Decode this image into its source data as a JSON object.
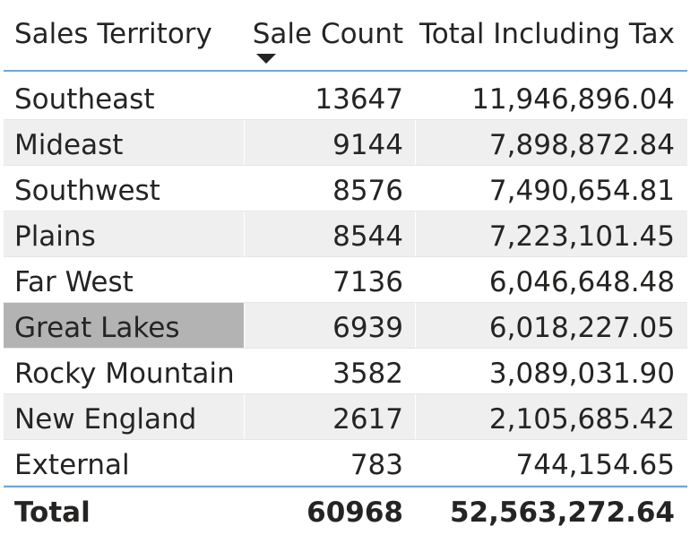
{
  "columns": {
    "territory": "Sales Territory",
    "count": "Sale Count",
    "total": "Total Including Tax"
  },
  "sort": {
    "column": "count",
    "direction": "descending",
    "icon": "sort-descending-icon"
  },
  "rows": [
    {
      "territory": "Southeast",
      "count": "13647",
      "total": "11,946,896.04",
      "selected": false
    },
    {
      "territory": "Mideast",
      "count": "9144",
      "total": "7,898,872.84",
      "selected": false
    },
    {
      "territory": "Southwest",
      "count": "8576",
      "total": "7,490,654.81",
      "selected": false
    },
    {
      "territory": "Plains",
      "count": "8544",
      "total": "7,223,101.45",
      "selected": false
    },
    {
      "territory": "Far West",
      "count": "7136",
      "total": "6,046,648.48",
      "selected": false
    },
    {
      "territory": "Great Lakes",
      "count": "6939",
      "total": "6,018,227.05",
      "selected": true
    },
    {
      "territory": "Rocky Mountain",
      "count": "3582",
      "total": "3,089,031.90",
      "selected": false
    },
    {
      "territory": "New England",
      "count": "2617",
      "total": "2,105,685.42",
      "selected": false
    },
    {
      "territory": "External",
      "count": "783",
      "total": "744,154.65",
      "selected": false
    }
  ],
  "totals": {
    "label": "Total",
    "count": "60968",
    "total": "52,563,272.64"
  },
  "colors": {
    "header_rule": "#6ea6dc",
    "alt_row": "#efefef",
    "selected_cell": "#b3b3b3",
    "text": "#252423"
  }
}
